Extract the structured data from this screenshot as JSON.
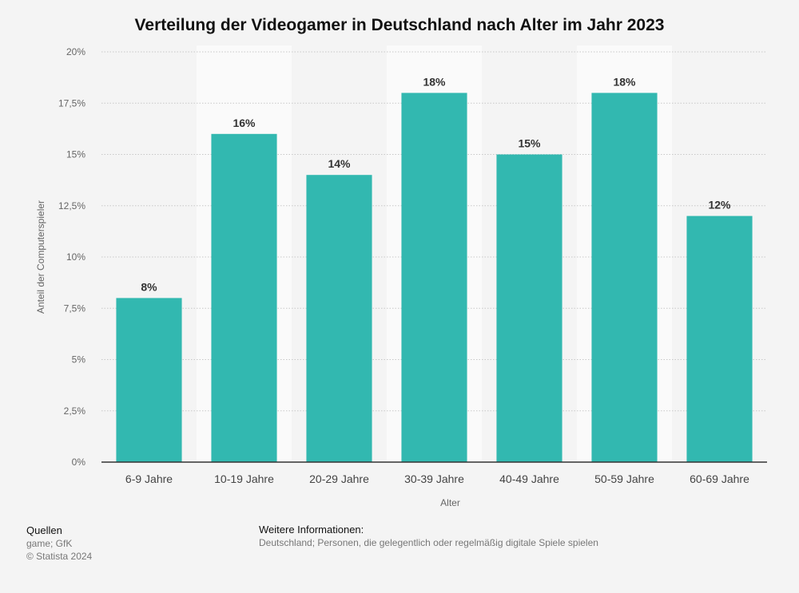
{
  "chart_data": {
    "type": "bar",
    "title": "Verteilung der Videogamer in Deutschland nach Alter im Jahr 2023",
    "categories": [
      "6-9 Jahre",
      "10-19 Jahre",
      "20-29 Jahre",
      "30-39 Jahre",
      "40-49 Jahre",
      "50-59 Jahre",
      "60-69 Jahre"
    ],
    "values": [
      8,
      16,
      14,
      18,
      15,
      18,
      12
    ],
    "value_labels": [
      "8%",
      "16%",
      "14%",
      "18%",
      "15%",
      "18%",
      "12%"
    ],
    "xlabel": "Alter",
    "ylabel": "Anteil der Computerspieler",
    "ylim": [
      0,
      20
    ],
    "yticks": [
      0,
      2.5,
      5,
      7.5,
      10,
      12.5,
      15,
      17.5,
      20
    ],
    "ytick_labels": [
      "0%",
      "2,5%",
      "5%",
      "7,5%",
      "10%",
      "12,5%",
      "15%",
      "17,5%",
      "20%"
    ],
    "grid": true,
    "bar_color": "#32b8b0",
    "alternating_band_color": "#fafafa"
  },
  "footer": {
    "sources_heading": "Quellen",
    "sources": "game; GfK",
    "copyright": "© Statista 2024",
    "info_heading": "Weitere Informationen:",
    "info_text": "Deutschland; Personen, die gelegentlich oder regelmäßig digitale Spiele spielen"
  }
}
